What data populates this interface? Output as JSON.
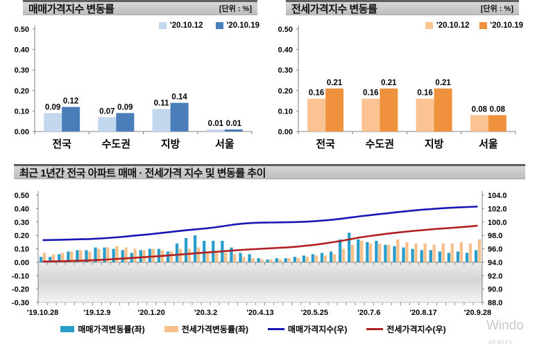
{
  "watermark": {
    "line1": "Windo",
    "line2": "설정으"
  },
  "chart_data": [
    {
      "id": "sale_change",
      "type": "bar",
      "title": "매매가격지수 변동률",
      "unit": "[단위 : %]",
      "categories": [
        "전국",
        "수도권",
        "지방",
        "서울"
      ],
      "series": [
        {
          "name": "'20.10.12",
          "color": "#c3d7ee",
          "values": [
            0.09,
            0.07,
            0.11,
            0.01
          ]
        },
        {
          "name": "'20.10.19",
          "color": "#4a7ebb",
          "values": [
            0.12,
            0.09,
            0.14,
            0.01
          ]
        }
      ],
      "ylim": [
        0,
        0.5
      ],
      "ytick_step": 0.1,
      "grid": false,
      "legend_position": "top-right"
    },
    {
      "id": "jeonse_change",
      "type": "bar",
      "title": "전세가격지수 변동률",
      "unit": "[단위 : %]",
      "categories": [
        "전국",
        "수도권",
        "지방",
        "서울"
      ],
      "series": [
        {
          "name": "'20.10.12",
          "color": "#fac391",
          "values": [
            0.16,
            0.16,
            0.16,
            0.08
          ]
        },
        {
          "name": "'20.10.19",
          "color": "#f0913d",
          "values": [
            0.21,
            0.21,
            0.21,
            0.08
          ]
        }
      ],
      "ylim": [
        0,
        0.5
      ],
      "ytick_step": 0.1,
      "grid": false,
      "legend_position": "top-right"
    },
    {
      "id": "trend",
      "type": "combo-bar-line",
      "title": "최근 1년간 전국 아파트 매매 · 전세가격 지수 및 변동률 추이",
      "weeks": 49,
      "x_tick_labels": [
        "'19.10.28",
        "'19.12.9",
        "'20.1.20",
        "'20.3.2",
        "'20.4.13",
        "'20.5.25",
        "'20.7.6",
        "'20.8.17",
        "'20.9.28"
      ],
      "x_tick_weeks": [
        0,
        6,
        12,
        18,
        24,
        30,
        36,
        42,
        48
      ],
      "left_axis": {
        "min": -0.3,
        "max": 0.5,
        "step": 0.1
      },
      "right_axis": {
        "min": 88.0,
        "max": 104.0,
        "step": 2.0
      },
      "legend_position": "bottom",
      "series": [
        {
          "name": "매매가격변동률(좌)",
          "kind": "bar",
          "axis": "left",
          "color": "#2a9dcb",
          "values": [
            0.04,
            0.04,
            0.06,
            0.08,
            0.09,
            0.09,
            0.11,
            0.11,
            0.1,
            0.09,
            0.07,
            0.09,
            0.1,
            0.1,
            0.08,
            0.14,
            0.18,
            0.2,
            0.16,
            0.16,
            0.16,
            0.11,
            0.07,
            0.06,
            0.03,
            0.02,
            0.03,
            0.03,
            0.04,
            0.05,
            0.06,
            0.07,
            0.08,
            0.17,
            0.22,
            0.17,
            0.15,
            0.16,
            0.13,
            0.12,
            0.11,
            0.1,
            0.09,
            0.09,
            0.08,
            0.07,
            0.08,
            0.07,
            0.09
          ]
        },
        {
          "name": "전세가격변동률(좌)",
          "kind": "bar",
          "axis": "left",
          "color": "#f7c08a",
          "values": [
            0.07,
            0.06,
            0.07,
            0.08,
            0.09,
            0.08,
            0.1,
            0.11,
            0.12,
            0.11,
            0.1,
            0.09,
            0.1,
            0.09,
            0.08,
            0.1,
            0.1,
            0.11,
            0.07,
            0.07,
            0.07,
            0.06,
            0.04,
            0.03,
            0.02,
            0.02,
            0.02,
            0.03,
            0.03,
            0.04,
            0.05,
            0.05,
            0.06,
            0.1,
            0.13,
            0.16,
            0.14,
            0.14,
            0.13,
            0.17,
            0.15,
            0.14,
            0.14,
            0.13,
            0.14,
            0.14,
            0.15,
            0.14,
            0.17
          ]
        },
        {
          "name": "매매가격지수(우)",
          "kind": "line",
          "axis": "right",
          "color": "#1716b4",
          "values": [
            97.3,
            97.32,
            97.35,
            97.38,
            97.42,
            97.46,
            97.52,
            97.6,
            97.7,
            97.82,
            97.95,
            98.08,
            98.2,
            98.35,
            98.5,
            98.65,
            98.8,
            98.92,
            99.05,
            99.2,
            99.4,
            99.6,
            99.75,
            99.85,
            99.9,
            99.92,
            99.94,
            99.96,
            100.0,
            100.05,
            100.12,
            100.22,
            100.35,
            100.5,
            100.68,
            100.85,
            101.0,
            101.15,
            101.3,
            101.45,
            101.6,
            101.72,
            101.85,
            101.95,
            102.05,
            102.12,
            102.18,
            102.25,
            102.3
          ]
        },
        {
          "name": "전세가격지수(우)",
          "kind": "line",
          "axis": "right",
          "color": "#b02020",
          "values": [
            94.1,
            94.12,
            94.15,
            94.18,
            94.22,
            94.27,
            94.33,
            94.4,
            94.48,
            94.56,
            94.65,
            94.74,
            94.83,
            94.93,
            95.03,
            95.13,
            95.24,
            95.35,
            95.45,
            95.55,
            95.65,
            95.75,
            95.85,
            95.93,
            96.0,
            96.07,
            96.14,
            96.22,
            96.32,
            96.45,
            96.6,
            96.78,
            96.98,
            97.2,
            97.45,
            97.7,
            97.9,
            98.08,
            98.25,
            98.4,
            98.55,
            98.68,
            98.8,
            98.92,
            99.02,
            99.12,
            99.22,
            99.32,
            99.45
          ]
        }
      ]
    }
  ]
}
